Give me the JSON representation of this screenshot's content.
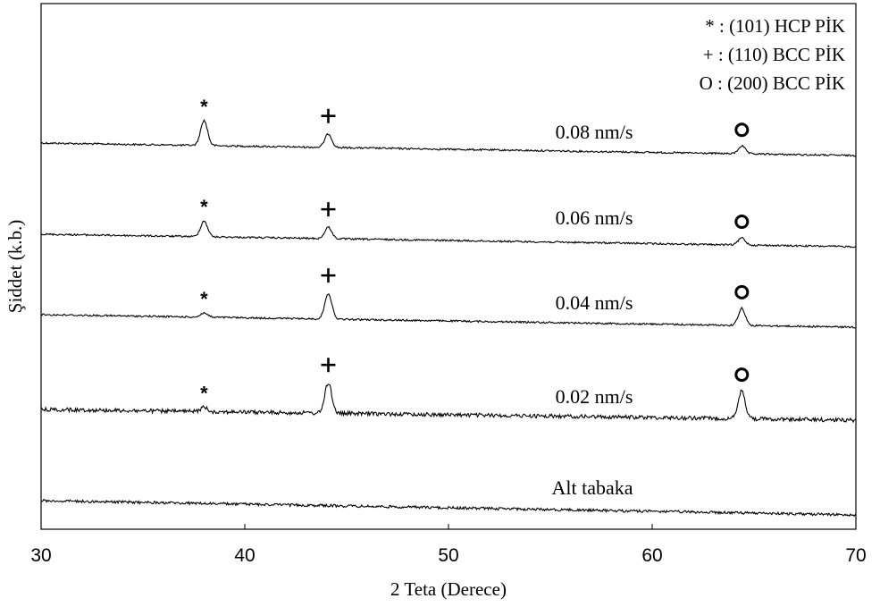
{
  "chart_data": {
    "type": "line",
    "xlabel": "2 Teta (Derece)",
    "ylabel": "Şiddet (k.b.)",
    "xlim": [
      30,
      70
    ],
    "xticks": [
      "30",
      "40",
      "50",
      "60",
      "70"
    ],
    "yticks_shown": false,
    "grid": false,
    "legend_position": "top-right",
    "legend": [
      {
        "symbol": "*",
        "text": "* : (101) HCP PİK"
      },
      {
        "symbol": "+",
        "text": "+ : (110) BCC PİK"
      },
      {
        "symbol": "O",
        "text": "O : (200) BCC PİK"
      }
    ],
    "peaks": [
      {
        "symbol": "*",
        "x": 38.0
      },
      {
        "symbol": "+",
        "x": 44.1
      },
      {
        "symbol": "O",
        "x": 64.4
      }
    ],
    "series": [
      {
        "name": "0.08 nm/s",
        "offset": 4,
        "start_level": 0.4,
        "end_level": 0.04,
        "noise": 0.01,
        "peak_heights": [
          0.7,
          0.38,
          0.22
        ],
        "marked": [
          "*",
          "+",
          "O"
        ]
      },
      {
        "name": "0.06 nm/s",
        "offset": 3,
        "start_level": 0.45,
        "end_level": 0.05,
        "noise": 0.01,
        "peak_heights": [
          0.44,
          0.32,
          0.2
        ],
        "marked": [
          "*",
          "+",
          "O"
        ]
      },
      {
        "name": "0.04 nm/s",
        "offset": 2,
        "start_level": 0.32,
        "end_level": 0.04,
        "noise": 0.01,
        "peak_heights": [
          0.12,
          0.72,
          0.48
        ],
        "marked": [
          "*",
          "+",
          "O"
        ]
      },
      {
        "name": "0.02 nm/s",
        "offset": 1,
        "start_level": 0.45,
        "end_level": 0.08,
        "noise": 0.022,
        "peak_heights": [
          0.12,
          0.85,
          0.78
        ],
        "marked": [
          "*",
          "+",
          "O"
        ]
      },
      {
        "name": "Alt tabaka",
        "offset": 0,
        "start_level": 0.45,
        "end_level": 0.12,
        "noise": 0.015,
        "peak_heights": [
          0,
          0,
          0
        ],
        "marked": []
      }
    ]
  }
}
